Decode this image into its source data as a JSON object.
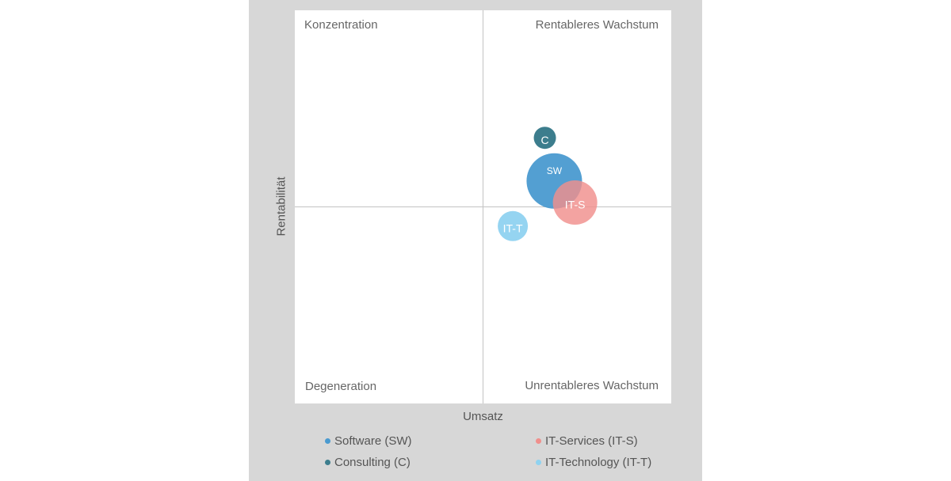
{
  "chart_data": {
    "type": "bubble",
    "xlabel": "Umsatz",
    "ylabel": "Rentabilität",
    "xlim": [
      -1,
      1
    ],
    "ylim": [
      -1,
      1
    ],
    "grid": false,
    "legend_position": "bottom",
    "quadrants": {
      "top_left": "Konzentration",
      "top_right": "Rentableres Wachstum",
      "bottom_left": "Degeneration",
      "bottom_right": "Unrentableres Wachstum"
    },
    "series": [
      {
        "name": "Software (SW)",
        "label": "SW",
        "x": 0.38,
        "y": 0.13,
        "size": 35,
        "color": "#4a9ad0",
        "opacity": 0.95
      },
      {
        "name": "IT-Services (IT-S)",
        "label": "IT-S",
        "x": 0.49,
        "y": 0.02,
        "size": 28,
        "color": "#f08f8c",
        "opacity": 0.82
      },
      {
        "name": "Consulting (C)",
        "label": "C",
        "x": 0.33,
        "y": 0.35,
        "size": 14,
        "color": "#3c7d8d",
        "opacity": 1
      },
      {
        "name": "IT-Technology (IT-T)",
        "label": "IT-T",
        "x": 0.16,
        "y": -0.1,
        "size": 19,
        "color": "#8fd2f0",
        "opacity": 0.95
      }
    ],
    "legend": [
      {
        "name": "Software (SW)",
        "color": "#4a9ad0"
      },
      {
        "name": "IT-Services (IT-S)",
        "color": "#f08f8c"
      },
      {
        "name": "Consulting (C)",
        "color": "#3c7d8d"
      },
      {
        "name": "IT-Technology (IT-T)",
        "color": "#8fd2f0"
      }
    ]
  }
}
